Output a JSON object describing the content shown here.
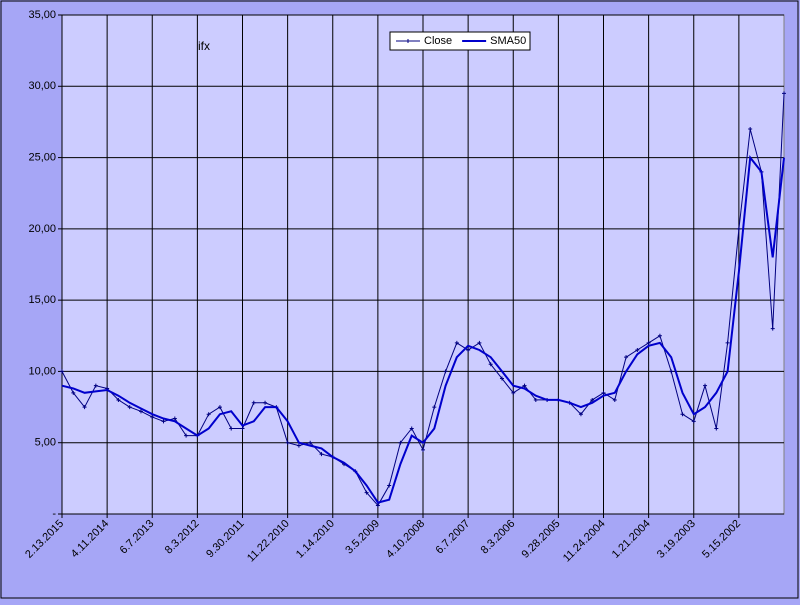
{
  "chart_data": {
    "type": "line",
    "title": "ifx",
    "categories": [
      "2.13.2015",
      null,
      null,
      null,
      "4.11.2014",
      null,
      null,
      null,
      "6.7.2013",
      null,
      null,
      null,
      "8.3.2012",
      null,
      null,
      null,
      "9.30.2011",
      null,
      null,
      null,
      "11.22.2010",
      null,
      null,
      null,
      "1.14.2010",
      null,
      null,
      null,
      "3.5.2009",
      null,
      null,
      null,
      "4.10.2008",
      null,
      null,
      null,
      "6.7.2007",
      null,
      null,
      null,
      "8.3.2006",
      null,
      null,
      null,
      "9.28.2005",
      null,
      null,
      null,
      "11.24.2004",
      null,
      null,
      null,
      "1.21.2004",
      null,
      null,
      null,
      "3.19.2003",
      null,
      null,
      null,
      "5.15.2002",
      null,
      null,
      null,
      null
    ],
    "series": [
      {
        "name": "Close",
        "color": "#000080",
        "values": [
          10.0,
          8.5,
          7.5,
          9.0,
          8.8,
          8.0,
          7.5,
          7.2,
          6.8,
          6.5,
          6.7,
          5.5,
          5.5,
          7.0,
          7.5,
          6.0,
          6.0,
          7.8,
          7.8,
          7.5,
          5.0,
          4.8,
          5.0,
          4.2,
          4.0,
          3.5,
          3.0,
          1.5,
          0.6,
          2.0,
          5.0,
          6.0,
          4.5,
          7.5,
          10.0,
          12.0,
          11.5,
          12.0,
          10.5,
          9.5,
          8.5,
          9.0,
          8.0,
          8.0,
          8.0,
          7.8,
          7.0,
          8.0,
          8.5,
          8.0,
          11.0,
          11.5,
          12.0,
          12.5,
          10.0,
          7.0,
          6.5,
          9.0,
          6.0,
          12.0,
          20.0,
          27.0,
          24.0,
          13.0,
          29.5
        ]
      },
      {
        "name": "SMA50",
        "color": "#0000cc",
        "values": [
          9.0,
          8.8,
          8.5,
          8.6,
          8.7,
          8.3,
          7.8,
          7.4,
          7.0,
          6.7,
          6.5,
          6.0,
          5.5,
          6.0,
          7.0,
          7.2,
          6.2,
          6.5,
          7.5,
          7.5,
          6.5,
          5.0,
          4.8,
          4.6,
          4.0,
          3.6,
          3.0,
          2.0,
          0.8,
          1.0,
          3.5,
          5.5,
          5.0,
          6.0,
          9.0,
          11.0,
          11.8,
          11.5,
          11.0,
          10.0,
          9.0,
          8.8,
          8.3,
          8.0,
          8.0,
          7.8,
          7.5,
          7.8,
          8.3,
          8.5,
          10.0,
          11.2,
          11.8,
          12.0,
          11.0,
          8.5,
          7.0,
          7.5,
          8.5,
          10.0,
          17.0,
          25.0,
          24.0,
          18.0,
          25.0
        ]
      }
    ],
    "ylim": [
      0,
      35
    ],
    "yticks": [
      {
        "value": 0,
        "label": "-"
      },
      {
        "value": 5,
        "label": "5,00"
      },
      {
        "value": 10,
        "label": "10,00"
      },
      {
        "value": 15,
        "label": "15,00"
      },
      {
        "value": 20,
        "label": "20,00"
      },
      {
        "value": 25,
        "label": "25,00"
      },
      {
        "value": 30,
        "label": "30,00"
      },
      {
        "value": 35,
        "label": "35,00"
      }
    ],
    "grid": true
  }
}
